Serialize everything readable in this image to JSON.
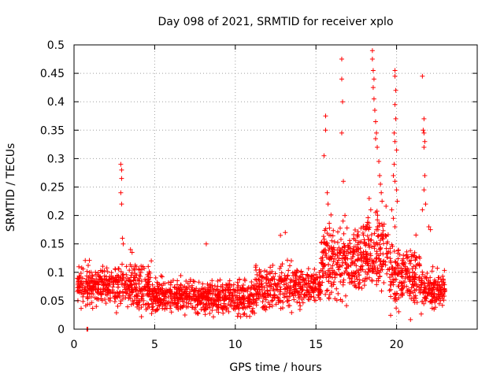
{
  "chart_data": {
    "type": "scatter",
    "title": "Day 098 of 2021, SRMTID for receiver xplo",
    "xlabel": "GPS time / hours",
    "ylabel": "SRMTID / TECUs",
    "xlim": [
      0,
      25
    ],
    "ylim": [
      0,
      0.5
    ],
    "xticks": [
      0,
      5,
      10,
      15,
      20
    ],
    "yticks": [
      0,
      0.05,
      0.1,
      0.15,
      0.2,
      0.25,
      0.3,
      0.35,
      0.4,
      0.45,
      0.5
    ],
    "xtick_labels": [
      "0",
      "5",
      "10",
      "15",
      "20"
    ],
    "ytick_labels": [
      "0",
      "0.05",
      "0.1",
      "0.15",
      "0.2",
      "0.25",
      "0.3",
      "0.35",
      "0.4",
      "0.45",
      "0.5"
    ],
    "grid": true,
    "marker": "plus",
    "color": "#ff0000",
    "series": [
      {
        "points": [
          [
            0.8,
            0.0
          ],
          [
            0.85,
            0.0
          ],
          [
            2.9,
            0.29
          ],
          [
            2.95,
            0.28
          ],
          [
            2.95,
            0.265
          ],
          [
            2.9,
            0.24
          ],
          [
            2.95,
            0.22
          ],
          [
            3.0,
            0.16
          ],
          [
            3.05,
            0.15
          ],
          [
            3.5,
            0.14
          ],
          [
            3.6,
            0.135
          ],
          [
            8.2,
            0.15
          ],
          [
            12.8,
            0.165
          ],
          [
            13.1,
            0.17
          ],
          [
            15.6,
            0.375
          ],
          [
            15.6,
            0.35
          ],
          [
            15.5,
            0.305
          ],
          [
            15.7,
            0.24
          ],
          [
            15.75,
            0.22
          ],
          [
            16.6,
            0.475
          ],
          [
            16.6,
            0.44
          ],
          [
            16.65,
            0.4
          ],
          [
            16.6,
            0.345
          ],
          [
            16.7,
            0.26
          ],
          [
            16.8,
            0.2
          ],
          [
            18.5,
            0.49
          ],
          [
            18.5,
            0.475
          ],
          [
            18.55,
            0.455
          ],
          [
            18.6,
            0.44
          ],
          [
            18.55,
            0.425
          ],
          [
            18.6,
            0.405
          ],
          [
            18.65,
            0.385
          ],
          [
            18.7,
            0.365
          ],
          [
            18.75,
            0.345
          ],
          [
            18.7,
            0.335
          ],
          [
            18.8,
            0.32
          ],
          [
            18.9,
            0.295
          ],
          [
            18.95,
            0.27
          ],
          [
            19.0,
            0.255
          ],
          [
            19.05,
            0.24
          ],
          [
            19.1,
            0.225
          ],
          [
            18.3,
            0.23
          ],
          [
            18.4,
            0.21
          ],
          [
            19.9,
            0.455
          ],
          [
            19.9,
            0.445
          ],
          [
            19.95,
            0.42
          ],
          [
            19.9,
            0.395
          ],
          [
            19.95,
            0.37
          ],
          [
            19.85,
            0.345
          ],
          [
            19.9,
            0.33
          ],
          [
            20.0,
            0.315
          ],
          [
            19.85,
            0.29
          ],
          [
            19.8,
            0.27
          ],
          [
            19.9,
            0.26
          ],
          [
            20.0,
            0.245
          ],
          [
            20.05,
            0.225
          ],
          [
            19.7,
            0.21
          ],
          [
            19.8,
            0.195
          ],
          [
            19.9,
            0.18
          ],
          [
            21.6,
            0.445
          ],
          [
            21.7,
            0.37
          ],
          [
            21.65,
            0.35
          ],
          [
            21.7,
            0.345
          ],
          [
            21.75,
            0.33
          ],
          [
            21.7,
            0.32
          ],
          [
            21.75,
            0.27
          ],
          [
            21.7,
            0.245
          ],
          [
            21.8,
            0.22
          ],
          [
            21.6,
            0.21
          ],
          [
            22.0,
            0.18
          ],
          [
            22.1,
            0.175
          ]
        ]
      }
    ],
    "noise_bands": [
      {
        "x": [
          0.2,
          2.5
        ],
        "mean": 0.075,
        "spread": 0.03,
        "n": 220
      },
      {
        "x": [
          2.5,
          4.8
        ],
        "mean": 0.075,
        "spread": 0.035,
        "n": 220
      },
      {
        "x": [
          4.8,
          7.0
        ],
        "mean": 0.058,
        "spread": 0.028,
        "n": 220
      },
      {
        "x": [
          7.0,
          9.0
        ],
        "mean": 0.055,
        "spread": 0.025,
        "n": 200
      },
      {
        "x": [
          9.0,
          11.2
        ],
        "mean": 0.055,
        "spread": 0.028,
        "n": 200
      },
      {
        "x": [
          11.2,
          13.5
        ],
        "mean": 0.075,
        "spread": 0.035,
        "n": 200
      },
      {
        "x": [
          13.5,
          15.3
        ],
        "mean": 0.075,
        "spread": 0.03,
        "n": 170
      },
      {
        "x": [
          15.3,
          17.5
        ],
        "mean": 0.12,
        "spread": 0.055,
        "n": 230
      },
      {
        "x": [
          17.5,
          19.5
        ],
        "mean": 0.135,
        "spread": 0.06,
        "n": 220
      },
      {
        "x": [
          19.5,
          21.5
        ],
        "mean": 0.09,
        "spread": 0.05,
        "n": 200
      },
      {
        "x": [
          21.5,
          23.0
        ],
        "mean": 0.07,
        "spread": 0.03,
        "n": 150
      }
    ]
  }
}
